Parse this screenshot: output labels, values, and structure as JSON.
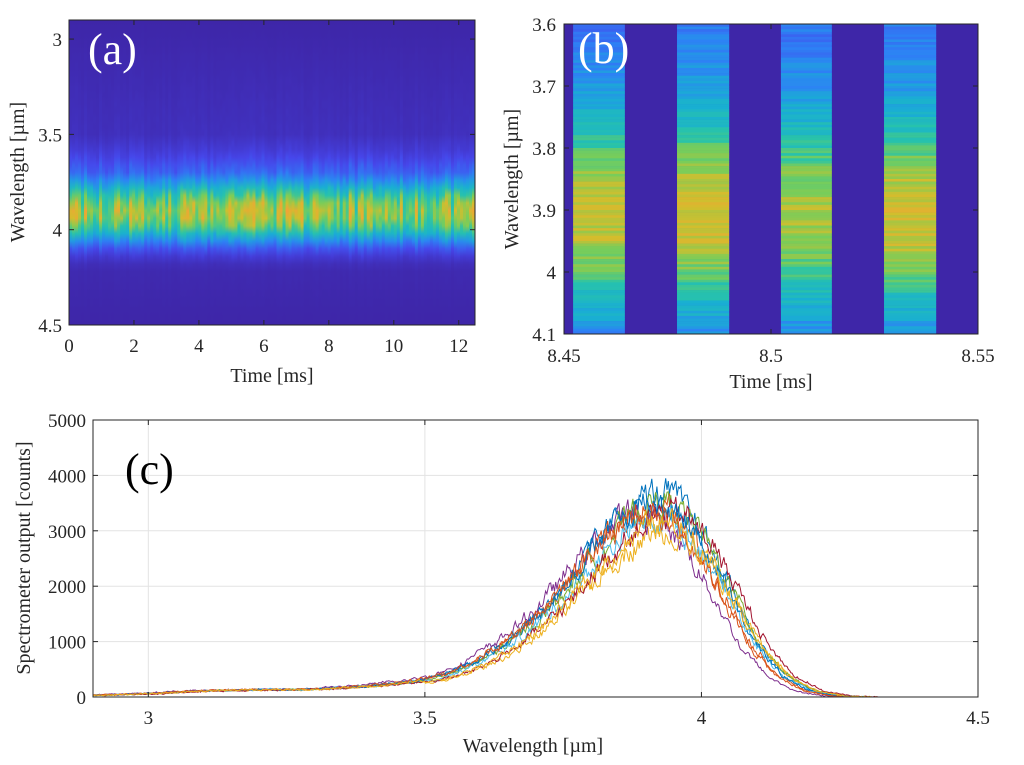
{
  "chart_data": [
    {
      "panel": "(a)",
      "type": "heatmap",
      "xlabel": "Time [ms]",
      "ylabel": "Wavelength [µm]",
      "xlim": [
        0,
        12.5
      ],
      "ylim": [
        2.9,
        4.5
      ],
      "y_reversed": true,
      "xticks": [
        "0",
        "2",
        "4",
        "6",
        "8",
        "10",
        "12"
      ],
      "yticks": [
        "3",
        "3.5",
        "4",
        "4.5"
      ],
      "colormap": "parula",
      "intensity_profile": {
        "wavelength": [
          2.9,
          3.5,
          3.6,
          3.7,
          3.75,
          3.8,
          3.85,
          3.9,
          3.95,
          4.0,
          4.05,
          4.1,
          4.15,
          4.2,
          4.5
        ],
        "relative_intensity": [
          0.0,
          0.05,
          0.12,
          0.25,
          0.4,
          0.6,
          0.78,
          0.85,
          0.82,
          0.65,
          0.4,
          0.2,
          0.08,
          0.02,
          0.0
        ]
      },
      "label_color": "#ffffff"
    },
    {
      "panel": "(b)",
      "type": "heatmap",
      "xlabel": "Time [ms]",
      "ylabel": "Wavelength [µm]",
      "xlim": [
        8.45,
        8.55
      ],
      "ylim": [
        3.6,
        4.1
      ],
      "y_reversed": true,
      "xticks": [
        "8.45",
        "8.5",
        "8.55"
      ],
      "yticks": [
        "3.6",
        "3.7",
        "3.8",
        "3.9",
        "4",
        "4.1"
      ],
      "colormap": "parula",
      "pulses_ms": [
        [
          8.4522,
          8.4647
        ],
        [
          8.4773,
          8.4899
        ],
        [
          8.5024,
          8.5147
        ],
        [
          8.5273,
          8.5399
        ]
      ],
      "label_color": "#ffffff"
    },
    {
      "panel": "(c)",
      "type": "line",
      "xlabel": "Wavelength [µm]",
      "ylabel": "Spectrometer output [counts]",
      "xlim": [
        2.9,
        4.5
      ],
      "ylim": [
        0,
        5000
      ],
      "grid": true,
      "xticks": [
        "3",
        "3.5",
        "4",
        "4.5"
      ],
      "yticks": [
        "0",
        "1000",
        "2000",
        "3000",
        "4000",
        "5000"
      ],
      "x": [
        2.9,
        3.0,
        3.1,
        3.2,
        3.3,
        3.4,
        3.5,
        3.55,
        3.6,
        3.65,
        3.7,
        3.75,
        3.8,
        3.85,
        3.9,
        3.95,
        4.0,
        4.05,
        4.1,
        4.15,
        4.2,
        4.25,
        4.3,
        4.5
      ],
      "mean_counts": [
        30,
        60,
        110,
        130,
        140,
        200,
        300,
        420,
        650,
        950,
        1350,
        1850,
        2450,
        3000,
        3400,
        3350,
        2800,
        1900,
        950,
        380,
        110,
        20,
        0,
        0
      ],
      "series_colors": [
        "#0072bd",
        "#d95319",
        "#edb120",
        "#7e2f8e",
        "#77ac30",
        "#4dbeee",
        "#a2142f",
        "#0072bd",
        "#d95319",
        "#edb120"
      ],
      "peak_scale": [
        1.08,
        1.0,
        0.88,
        0.97,
        1.03,
        0.95,
        0.98,
        1.04,
        0.99,
        0.92
      ],
      "shift_um": [
        0.0,
        -0.01,
        0.015,
        -0.03,
        0.005,
        0.0,
        0.02,
        -0.005,
        -0.015,
        0.01
      ]
    }
  ]
}
